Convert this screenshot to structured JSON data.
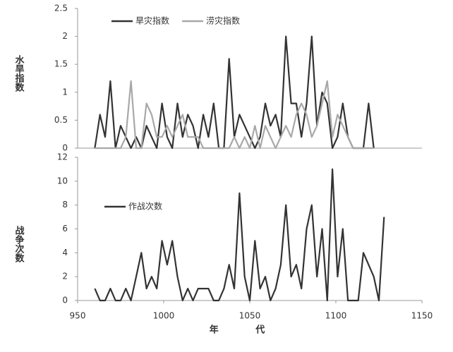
{
  "chart_data": [
    {
      "type": "line",
      "y_label": "水旱指数",
      "legend": "upper center",
      "xlim": [
        950,
        1150
      ],
      "ylim": [
        0,
        2.5
      ],
      "yticks": [
        0,
        0.5,
        1,
        {
          "value": 1.5,
          "label": "1.5"
        },
        2,
        {
          "value": 2.5,
          "label": "2.5"
        }
      ],
      "x": [
        960,
        963,
        966,
        969,
        972,
        975,
        978,
        981,
        984,
        987,
        990,
        993,
        996,
        999,
        1002,
        1005,
        1008,
        1011,
        1014,
        1017,
        1020,
        1023,
        1026,
        1029,
        1032,
        1035,
        1038,
        1041,
        1044,
        1047,
        1050,
        1053,
        1056,
        1059,
        1062,
        1065,
        1068,
        1071,
        1074,
        1077,
        1080,
        1083,
        1086,
        1089,
        1092,
        1095,
        1098,
        1101,
        1104,
        1107,
        1110,
        1113,
        1116,
        1119,
        1122
      ],
      "series": [
        {
          "name": "旱灾指数",
          "color": "#333333",
          "values": [
            0,
            0.6,
            0.2,
            1.2,
            0,
            0.4,
            0.2,
            0,
            0.2,
            0,
            0.4,
            0.2,
            0,
            0.8,
            0.2,
            0,
            0.8,
            0.2,
            0.6,
            0.4,
            0,
            0.6,
            0.2,
            0.8,
            0,
            0,
            1.6,
            0.2,
            0.6,
            0.4,
            0.2,
            0,
            0.2,
            0.8,
            0.4,
            0.6,
            0.2,
            2,
            0.8,
            0.8,
            0.2,
            0.8,
            2,
            0.4,
            1,
            0.8,
            0,
            0.2,
            0.8,
            0.2,
            0,
            0,
            0,
            0.8,
            0
          ]
        },
        {
          "name": "涝灾指数",
          "color": "#a8a8a8",
          "values": [
            0,
            0,
            0,
            0,
            0,
            0,
            0.2,
            1.2,
            0,
            0,
            0.8,
            0.6,
            0.2,
            0.2,
            0.4,
            0.2,
            0.4,
            0.6,
            0.2,
            0.2,
            0.2,
            0,
            0,
            0,
            0,
            0,
            0,
            0.2,
            0,
            0.2,
            0,
            0.4,
            0,
            0.4,
            0.2,
            0,
            0.2,
            0.4,
            0.2,
            0.6,
            0.8,
            0.6,
            0.2,
            0.4,
            0.8,
            1.2,
            0.2,
            0.6,
            0.4,
            0.2,
            0,
            0,
            0,
            0,
            0
          ]
        }
      ]
    },
    {
      "type": "line",
      "y_label": "战争次数",
      "x_label": "年 代",
      "legend": "upper left",
      "xlim": [
        950,
        1150
      ],
      "ylim": [
        0,
        12
      ],
      "xticks": [
        950,
        1000,
        1050,
        1100,
        1150
      ],
      "yticks": [
        0,
        2,
        4,
        6,
        8,
        10,
        12
      ],
      "x": [
        960,
        963,
        966,
        969,
        972,
        975,
        978,
        981,
        984,
        987,
        990,
        993,
        996,
        999,
        1002,
        1005,
        1008,
        1011,
        1014,
        1017,
        1020,
        1023,
        1026,
        1029,
        1032,
        1035,
        1038,
        1041,
        1044,
        1047,
        1050,
        1053,
        1056,
        1059,
        1062,
        1065,
        1068,
        1071,
        1074,
        1077,
        1080,
        1083,
        1086,
        1089,
        1092,
        1095,
        1098,
        1101,
        1104,
        1107,
        1110,
        1113,
        1116,
        1119,
        1122,
        1125,
        1128
      ],
      "series": [
        {
          "name": "作战次数",
          "color": "#333333",
          "values": [
            1,
            0,
            0,
            1,
            0,
            0,
            1,
            0,
            2,
            4,
            1,
            2,
            1,
            5,
            3,
            5,
            2,
            0,
            1,
            0,
            1,
            1,
            1,
            0,
            0,
            1,
            3,
            1,
            9,
            2,
            0,
            5,
            1,
            2,
            0,
            1,
            3,
            8,
            2,
            3,
            1,
            6,
            8,
            2,
            6,
            0,
            11,
            2,
            6,
            0,
            0,
            0,
            4,
            3,
            2,
            0,
            7
          ]
        }
      ]
    }
  ]
}
